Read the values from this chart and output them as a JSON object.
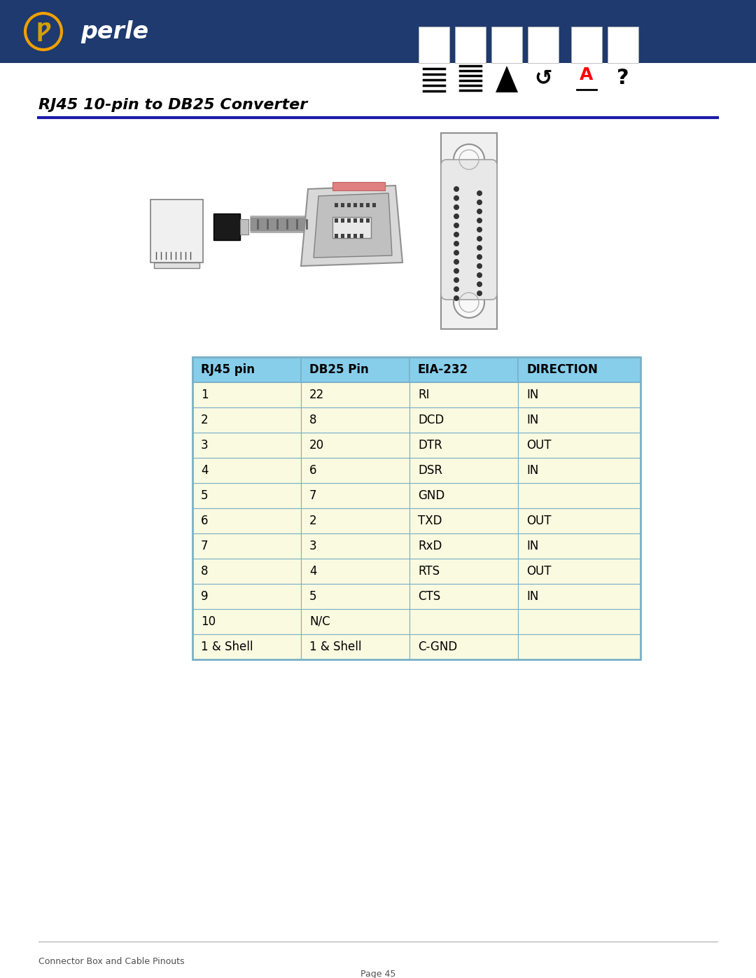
{
  "title": "RJ45 10-pin to DB25 Converter",
  "header_bg": "#1e3a6e",
  "page_bg": "#ffffff",
  "table_header_color": "#87ceeb",
  "table_row_color": "#fafae0",
  "table_border_color": "#7ab0c8",
  "table_inner_color": "#c8c8a8",
  "title_color": "#000000",
  "section_line_color": "#1a1aaa",
  "columns": [
    "RJ45 pin",
    "DB25 Pin",
    "EIA-232",
    "DIRECTION"
  ],
  "rows": [
    [
      "1",
      "22",
      "RI",
      "IN"
    ],
    [
      "2",
      "8",
      "DCD",
      "IN"
    ],
    [
      "3",
      "20",
      "DTR",
      "OUT"
    ],
    [
      "4",
      "6",
      "DSR",
      "IN"
    ],
    [
      "5",
      "7",
      "GND",
      ""
    ],
    [
      "6",
      "2",
      "TXD",
      "OUT"
    ],
    [
      "7",
      "3",
      "RxD",
      "IN"
    ],
    [
      "8",
      "4",
      "RTS",
      "OUT"
    ],
    [
      "9",
      "5",
      "CTS",
      "IN"
    ],
    [
      "10",
      "N/C",
      "",
      ""
    ],
    [
      "1 & Shell",
      "1 & Shell",
      "C-GND",
      ""
    ]
  ],
  "footer_line": "Connector Box and Cable Pinouts",
  "footer_page": "Page 45"
}
